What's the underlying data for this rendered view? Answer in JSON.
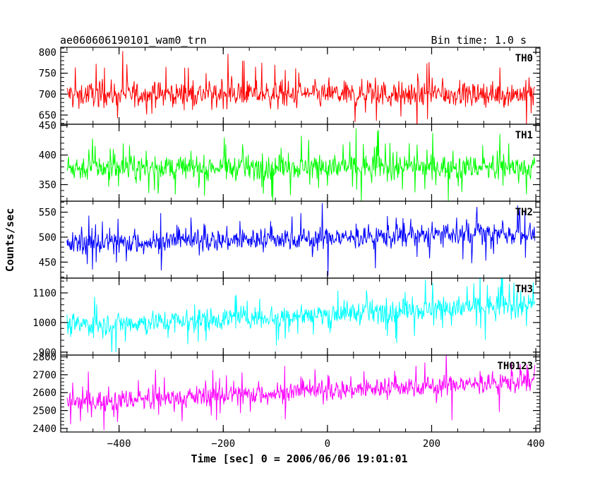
{
  "header": {
    "left": "ae060606190101_wam0_trn",
    "right": "Bin time: 1.0 s"
  },
  "chart_data": {
    "type": "line",
    "title": "ae060606190101_wam0_trn",
    "xlabel": "Time [sec] 0 = 2006/06/06 19:01:01",
    "ylabel": "Counts/sec",
    "xlim": [
      -512,
      408
    ],
    "xticks": [
      -400,
      -200,
      0,
      200,
      400
    ],
    "x_step": 1.0,
    "grid": false,
    "panels": [
      {
        "name": "TH0",
        "color": "#ff0000",
        "ylim": [
          628,
          812
        ],
        "yticks": [
          650,
          700,
          750,
          800
        ],
        "x_start": -500,
        "x_end": 398,
        "y_start": 700,
        "y_end": 700,
        "noise": 26,
        "spikes": 14
      },
      {
        "name": "TH1",
        "color": "#00ff00",
        "ylim": [
          322,
          452
        ],
        "yticks": [
          350,
          400,
          450
        ],
        "x_start": -500,
        "x_end": 398,
        "y_start": 378,
        "y_end": 380,
        "noise": 18,
        "spikes": 12
      },
      {
        "name": "TH2",
        "color": "#0000ff",
        "ylim": [
          418,
          572
        ],
        "yticks": [
          450,
          500,
          550
        ],
        "x_start": -500,
        "x_end": 398,
        "y_start": 487,
        "y_end": 508,
        "noise": 20,
        "spikes": 14
      },
      {
        "name": "TH3",
        "color": "#00ffff",
        "ylim": [
          890,
          1150
        ],
        "yticks": [
          900,
          1000,
          1100
        ],
        "x_start": -500,
        "x_end": 398,
        "y_start": 990,
        "y_end": 1060,
        "noise": 34,
        "spikes": 18
      },
      {
        "name": "TH0123",
        "color": "#ff00ff",
        "ylim": [
          2380,
          2810
        ],
        "yticks": [
          2400,
          2500,
          2600,
          2700,
          2800
        ],
        "x_start": -500,
        "x_end": 398,
        "y_start": 2545,
        "y_end": 2665,
        "noise": 52,
        "spikes": 22
      }
    ]
  }
}
